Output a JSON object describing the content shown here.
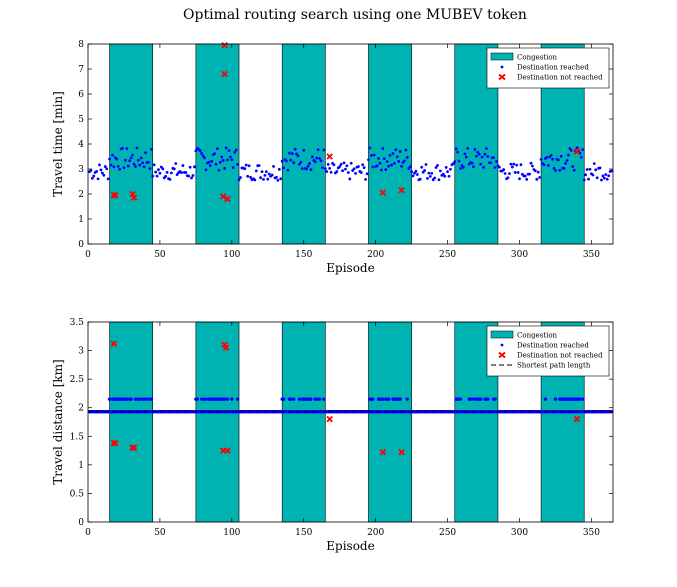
{
  "figure_title": "Optimal routing search using one MUBEV token",
  "colors": {
    "congestion": "#00b3b3",
    "reached": "#0000ff",
    "not_reached": "#ff0000",
    "shortest_path": "#000000"
  },
  "chart_data": [
    {
      "type": "scatter",
      "title": "",
      "xlabel": "Episode",
      "ylabel": "Travel time [min]",
      "xlim": [
        0,
        365
      ],
      "ylim": [
        0,
        8
      ],
      "xticks": [
        0,
        50,
        100,
        150,
        200,
        250,
        300,
        350
      ],
      "yticks": [
        0,
        1,
        2,
        3,
        4,
        5,
        6,
        7,
        8
      ],
      "grid": false,
      "legend_position": "top-right",
      "congestion_intervals": [
        [
          15,
          45
        ],
        [
          75,
          105
        ],
        [
          135,
          165
        ],
        [
          195,
          225
        ],
        [
          255,
          285
        ],
        [
          315,
          345
        ]
      ],
      "legend": [
        "Congestion",
        "Destination reached",
        "Destination not reached"
      ],
      "reached_profile": {
        "free_flow_mean": 2.9,
        "congestion_mean": 3.4,
        "spread": 0.35
      },
      "not_reached_points": [
        {
          "x": 18,
          "y": 1.95
        },
        {
          "x": 19,
          "y": 1.95
        },
        {
          "x": 31,
          "y": 2.0
        },
        {
          "x": 32,
          "y": 1.85
        },
        {
          "x": 95,
          "y": 7.95
        },
        {
          "x": 95,
          "y": 6.8
        },
        {
          "x": 94,
          "y": 1.9
        },
        {
          "x": 97,
          "y": 1.8
        },
        {
          "x": 168,
          "y": 3.5
        },
        {
          "x": 205,
          "y": 2.05
        },
        {
          "x": 218,
          "y": 2.15
        },
        {
          "x": 340,
          "y": 3.7
        }
      ]
    },
    {
      "type": "scatter",
      "title": "",
      "xlabel": "Episode",
      "ylabel": "Travel distance [km]",
      "xlim": [
        0,
        365
      ],
      "ylim": [
        0,
        3.5
      ],
      "xticks": [
        0,
        50,
        100,
        150,
        200,
        250,
        300,
        350
      ],
      "yticks": [
        0,
        0.5,
        1,
        1.5,
        2,
        2.5,
        3,
        3.5
      ],
      "grid": false,
      "legend_position": "top-right",
      "congestion_intervals": [
        [
          15,
          45
        ],
        [
          75,
          105
        ],
        [
          135,
          165
        ],
        [
          195,
          225
        ],
        [
          255,
          285
        ],
        [
          315,
          345
        ]
      ],
      "legend": [
        "Congestion",
        "Destination reached",
        "Destination not reached",
        "Shortest path length"
      ],
      "shortest_path_length": 1.93,
      "alternate_route_length": 2.15,
      "not_reached_points": [
        {
          "x": 18,
          "y": 3.12
        },
        {
          "x": 18,
          "y": 1.38
        },
        {
          "x": 19,
          "y": 1.38
        },
        {
          "x": 31,
          "y": 1.3
        },
        {
          "x": 32,
          "y": 1.3
        },
        {
          "x": 95,
          "y": 3.1
        },
        {
          "x": 96,
          "y": 3.05
        },
        {
          "x": 94,
          "y": 1.25
        },
        {
          "x": 97,
          "y": 1.25
        },
        {
          "x": 168,
          "y": 1.8
        },
        {
          "x": 205,
          "y": 1.22
        },
        {
          "x": 218,
          "y": 1.22
        },
        {
          "x": 340,
          "y": 1.8
        }
      ]
    }
  ]
}
